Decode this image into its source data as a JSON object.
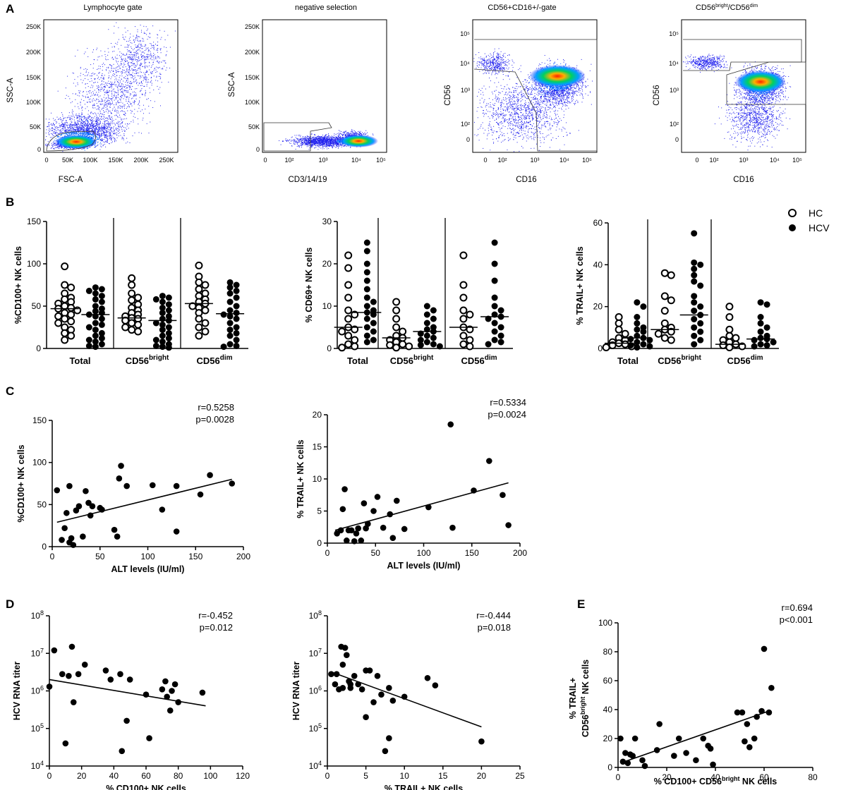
{
  "panel_labels": [
    "A",
    "B",
    "C",
    "D",
    "E"
  ],
  "colors": {
    "ink": "#000000",
    "flow_low": "#1a1aff",
    "flow_mid": "#00d060",
    "flow_high": "#ff2000"
  },
  "flow_panels": [
    {
      "title": "Lymphocyte gate",
      "xlabel": "FSC-A",
      "ylabel": "SSC-A",
      "xticks": [
        "0",
        "50K",
        "100K",
        "150K",
        "200K",
        "250K"
      ],
      "yticks": [
        "0",
        "50K",
        "100K",
        "150K",
        "200K",
        "250K"
      ]
    },
    {
      "title": "negative selection",
      "xlabel": "CD3/14/19",
      "ylabel": "SSC-A",
      "xticks": [
        "0",
        "10²",
        "10³",
        "10⁴",
        "10⁵"
      ],
      "yticks": [
        "0",
        "50K",
        "100K",
        "150K",
        "200K",
        "250K"
      ]
    },
    {
      "title": "CD56+CD16+/-gate",
      "xlabel": "CD16",
      "ylabel": "CD56",
      "xticks": [
        "0",
        "10²",
        "10³",
        "10⁴",
        "10⁵"
      ],
      "yticks": [
        "0",
        "10²",
        "10³",
        "10⁴",
        "10⁵"
      ]
    },
    {
      "title_main": "CD56",
      "title_sup1": "bright",
      "title_mid": "/CD56",
      "title_sup2": "dim",
      "xlabel": "CD16",
      "ylabel": "CD56",
      "xticks": [
        "0",
        "10²",
        "10³",
        "10⁴",
        "10⁵"
      ],
      "yticks": [
        "0",
        "10²",
        "10³",
        "10⁴",
        "10⁵"
      ]
    }
  ],
  "legend": {
    "hc": "HC",
    "hcv": "HCV"
  },
  "cat_labels": {
    "total": "Total",
    "base": "CD56",
    "bright": "bright",
    "dim": "dim"
  },
  "panel_C": [
    {
      "stat_r": "r=0.5258",
      "stat_p": "p=0.0028"
    },
    {
      "stat_r": "r=0.5334",
      "stat_p": "p=0.0024"
    }
  ],
  "panel_D": [
    {
      "stat_r": "r=-0.452",
      "stat_p": "p=0.012"
    },
    {
      "stat_r": "r=-0.444",
      "stat_p": "p=0.018"
    }
  ],
  "panel_E": {
    "stat_r": "r=0.694",
    "stat_p": "p<0.001",
    "ylabel_line1": "% TRAIL+",
    "ylabel_line2_main": "CD56",
    "ylabel_line2_sup": "bright",
    "ylabel_line2_end": " NK cells",
    "xlabel_main": "% CD100+ CD56",
    "xlabel_sup": "bright",
    "xlabel_end": " NK cells"
  },
  "chart_data": [
    {
      "id": "B1",
      "type": "scatter",
      "subtype": "dot-plot",
      "ylabel": "%CD100+ NK cells",
      "ylim": [
        0,
        150
      ],
      "yticks": [
        0,
        50,
        100,
        150
      ],
      "categories": [
        "Total",
        "CD56bright",
        "CD56dim"
      ],
      "series": [
        {
          "name": "HC",
          "marker": "open-circle",
          "medians": [
            47,
            36,
            53
          ],
          "values": [
            [
              97,
              75,
              72,
              65,
              60,
              58,
              55,
              53,
              50,
              48,
              47,
              45,
              42,
              40,
              38,
              35,
              32,
              30,
              25,
              22,
              18,
              15,
              10
            ],
            [
              83,
              75,
              65,
              60,
              57,
              52,
              48,
              45,
              42,
              40,
              38,
              36,
              35,
              33,
              30,
              28,
              25,
              22,
              20
            ],
            [
              98,
              85,
              78,
              75,
              70,
              65,
              62,
              58,
              55,
              53,
              50,
              48,
              45,
              42,
              35,
              30,
              25,
              20,
              15
            ]
          ]
        },
        {
          "name": "HCV",
          "marker": "filled-circle",
          "medians": [
            40,
            33,
            41
          ],
          "values": [
            [
              72,
              70,
              68,
              65,
              62,
              58,
              55,
              50,
              47,
              44,
              42,
              40,
              38,
              35,
              30,
              28,
              25,
              22,
              18,
              15,
              12,
              10,
              8,
              5,
              3,
              2
            ],
            [
              62,
              60,
              58,
              55,
              52,
              48,
              45,
              42,
              38,
              35,
              33,
              30,
              28,
              25,
              22,
              18,
              15,
              12,
              10,
              8,
              5,
              3,
              2,
              1
            ],
            [
              78,
              75,
              72,
              68,
              65,
              60,
              55,
              50,
              45,
              42,
              40,
              38,
              35,
              30,
              25,
              22,
              18,
              15,
              10,
              5,
              3,
              2
            ]
          ]
        }
      ]
    },
    {
      "id": "B2",
      "type": "scatter",
      "subtype": "dot-plot",
      "ylabel": "% CD69+ NK cells",
      "ylim": [
        0,
        30
      ],
      "yticks": [
        0,
        10,
        20,
        30
      ],
      "categories": [
        "Total",
        "CD56bright",
        "CD56dim"
      ],
      "series": [
        {
          "name": "HC",
          "marker": "open-circle",
          "medians": [
            5,
            2.5,
            5
          ],
          "values": [
            [
              22,
              19,
              15,
              12,
              9,
              8,
              7,
              5,
              4.5,
              4,
              3,
              2,
              1,
              0.5,
              0.2
            ],
            [
              11,
              9,
              7,
              5,
              4,
              3,
              2.5,
              2,
              1.5,
              1,
              0.8,
              0.5,
              0.2
            ],
            [
              22,
              15,
              12,
              9,
              8,
              7,
              5,
              4.5,
              3,
              2,
              1,
              0.5
            ]
          ]
        },
        {
          "name": "HCV",
          "marker": "filled-circle",
          "medians": [
            8.5,
            4,
            7.5
          ],
          "values": [
            [
              25,
              23,
              20,
              18,
              16,
              14,
              12,
              11,
              10,
              9,
              8.5,
              8,
              7,
              6,
              5,
              4,
              3,
              2,
              1.5
            ],
            [
              10,
              9,
              8,
              7,
              6,
              5,
              4.5,
              4,
              3.5,
              3,
              2.5,
              2,
              1.5,
              1,
              0.8,
              0.5
            ],
            [
              25,
              20,
              16,
              12,
              10,
              9,
              8,
              7.5,
              7,
              6,
              5,
              4,
              3,
              2,
              1.5,
              1
            ]
          ]
        }
      ]
    },
    {
      "id": "B3",
      "type": "scatter",
      "subtype": "dot-plot",
      "ylabel": "% TRAIL+ NK cells",
      "ylim": [
        0,
        60
      ],
      "yticks": [
        0,
        20,
        40,
        60
      ],
      "categories": [
        "Total",
        "CD56bright",
        "CD56dim"
      ],
      "series": [
        {
          "name": "HC",
          "marker": "open-circle",
          "medians": [
            2.5,
            9,
            2
          ],
          "values": [
            [
              15,
              12,
              9,
              7,
              5,
              4,
              3,
              2.5,
              2,
              1.5,
              1,
              0.5
            ],
            [
              36,
              35,
              25,
              23,
              18,
              12,
              10,
              9,
              8,
              7,
              5,
              4
            ],
            [
              20,
              15,
              9,
              6,
              5,
              4,
              3,
              2,
              1.5,
              1,
              0.5
            ]
          ]
        },
        {
          "name": "HCV",
          "marker": "filled-circle",
          "medians": [
            5,
            16,
            4.5
          ],
          "values": [
            [
              22,
              20,
              15,
              12,
              10,
              9,
              8,
              6,
              5,
              4.5,
              4,
              3,
              2,
              1.5,
              1,
              0.5
            ],
            [
              55,
              41,
              40,
              38,
              35,
              32,
              30,
              25,
              22,
              20,
              18,
              16,
              14,
              12,
              10,
              8,
              6,
              4,
              2
            ],
            [
              22,
              21,
              15,
              12,
              10,
              8,
              6,
              5,
              4.5,
              4,
              3,
              2,
              1.5,
              1
            ]
          ]
        }
      ]
    },
    {
      "id": "C1",
      "type": "scatter",
      "xlabel": "ALT levels (IU/ml)",
      "ylabel": "%CD100+ NK cells",
      "xlim": [
        0,
        200
      ],
      "ylim": [
        0,
        150
      ],
      "xticks": [
        0,
        50,
        100,
        150,
        200
      ],
      "yticks": [
        0,
        50,
        100,
        150
      ],
      "x": [
        5,
        10,
        13,
        15,
        18,
        18,
        20,
        22,
        25,
        28,
        32,
        35,
        38,
        40,
        42,
        50,
        52,
        65,
        68,
        70,
        72,
        78,
        105,
        115,
        130,
        130,
        155,
        165,
        188
      ],
      "y": [
        67,
        8,
        22,
        40,
        72,
        5,
        10,
        2,
        43,
        48,
        12,
        66,
        52,
        37,
        48,
        46,
        44,
        20,
        12,
        81,
        96,
        72,
        73,
        44,
        18,
        72,
        62,
        85,
        75
      ],
      "fit": [
        [
          5,
          29
        ],
        [
          188,
          80
        ]
      ]
    },
    {
      "id": "C2",
      "type": "scatter",
      "xlabel": "ALT levels (IU/ml)",
      "ylabel": "% TRAIL+ NK cells",
      "xlim": [
        0,
        200
      ],
      "ylim": [
        0,
        20
      ],
      "xticks": [
        0,
        50,
        100,
        150,
        200
      ],
      "yticks": [
        0,
        5,
        10,
        15,
        20
      ],
      "x": [
        10,
        14,
        16,
        18,
        20,
        22,
        25,
        28,
        30,
        32,
        35,
        38,
        40,
        42,
        48,
        52,
        58,
        65,
        68,
        72,
        80,
        105,
        128,
        130,
        152,
        168,
        182,
        188
      ],
      "y": [
        1.5,
        2,
        5.3,
        8.4,
        0.4,
        2,
        2,
        0.3,
        1.5,
        2.3,
        0.4,
        6.2,
        2.3,
        3,
        5,
        7.2,
        2.4,
        4.5,
        0.8,
        6.6,
        2.2,
        5.6,
        18.5,
        2.4,
        8.2,
        12.8,
        7.5,
        2.8
      ],
      "fit": [
        [
          8,
          2
        ],
        [
          188,
          9.4
        ]
      ]
    },
    {
      "id": "D1",
      "type": "scatter",
      "xlabel": "% CD100+ NK cells",
      "ylabel": "HCV RNA titer",
      "yscale": "log",
      "xlim": [
        0,
        120
      ],
      "ylim": [
        10000,
        100000000
      ],
      "xticks": [
        0,
        20,
        40,
        60,
        80,
        100,
        120
      ],
      "yticks_exp": [
        4,
        5,
        6,
        7,
        8
      ],
      "x": [
        0,
        3,
        8,
        10,
        12,
        14,
        15,
        18,
        22,
        35,
        38,
        44,
        45,
        48,
        50,
        60,
        62,
        70,
        72,
        73,
        75,
        76,
        78,
        80,
        95
      ],
      "y": [
        1300000.0,
        12000000.0,
        2800000.0,
        40000.0,
        2500000.0,
        15000000.0,
        500000.0,
        2800000.0,
        5000000.0,
        3500000.0,
        2000000.0,
        2800000.0,
        25000.0,
        160000.0,
        2000000.0,
        800000.0,
        55000.0,
        1100000.0,
        1800000.0,
        700000.0,
        300000.0,
        1000000.0,
        1500000.0,
        500000.0,
        900000.0
      ],
      "fit": [
        [
          0,
          2000000.0
        ],
        [
          97,
          400000.0
        ]
      ]
    },
    {
      "id": "D2",
      "type": "scatter",
      "xlabel": "% TRAIL+ NK cells",
      "ylabel": "HCV RNA titer",
      "yscale": "log",
      "xlim": [
        0,
        25
      ],
      "ylim": [
        10000,
        100000000
      ],
      "xticks": [
        0,
        5,
        10,
        15,
        20,
        25
      ],
      "yticks_exp": [
        4,
        5,
        6,
        7,
        8
      ],
      "x": [
        0.5,
        1,
        1.2,
        1.5,
        1.8,
        2,
        2,
        2.3,
        2.5,
        2.8,
        3,
        3,
        3.5,
        4,
        4.5,
        5,
        5,
        5.5,
        6,
        6.5,
        7,
        7.5,
        8,
        8,
        8.5,
        10,
        13,
        14,
        20
      ],
      "y": [
        2800000.0,
        1500000.0,
        2800000.0,
        1100000.0,
        15000000.0,
        5000000.0,
        1200000.0,
        14000000.0,
        9000000.0,
        1800000.0,
        1200000.0,
        1500000.0,
        2500000.0,
        1500000.0,
        1100000.0,
        3500000.0,
        200000.0,
        3500000.0,
        500000.0,
        2500000.0,
        800000.0,
        25000.0,
        1200000.0,
        55000.0,
        550000.0,
        700000.0,
        2200000.0,
        1400000.0,
        45000.0
      ],
      "fit": [
        [
          0.5,
          3200000.0
        ],
        [
          20,
          110000.0
        ]
      ]
    },
    {
      "id": "E",
      "type": "scatter",
      "xlabel": "% CD100+ CD56bright NK cells",
      "ylabel": "% TRAIL+ CD56bright NK cells",
      "xlim": [
        0,
        80
      ],
      "ylim": [
        0,
        100
      ],
      "xticks": [
        0,
        20,
        40,
        60,
        80
      ],
      "yticks": [
        0,
        20,
        40,
        60,
        80,
        100
      ],
      "x": [
        1,
        2,
        3,
        4,
        5,
        6,
        7,
        10,
        11,
        16,
        17,
        23,
        25,
        28,
        32,
        35,
        37,
        38,
        39,
        49,
        51,
        52,
        53,
        54,
        56,
        57,
        59,
        60,
        62,
        63
      ],
      "y": [
        20,
        4,
        10,
        3,
        9,
        8,
        20,
        5,
        1,
        12,
        30,
        8,
        20,
        10,
        5,
        20,
        15,
        13,
        2,
        38,
        38,
        18,
        30,
        14,
        20,
        35,
        39,
        82,
        38,
        55
      ],
      "fit": [
        [
          1,
          3
        ],
        [
          62,
          39
        ]
      ]
    }
  ]
}
